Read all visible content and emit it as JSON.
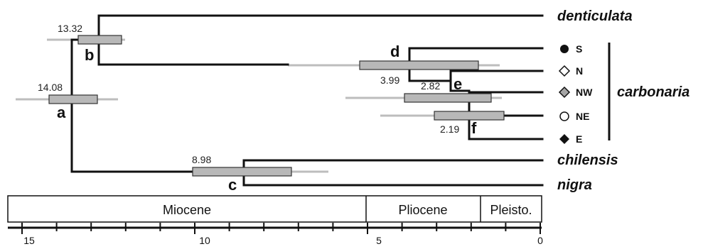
{
  "taxa": {
    "denticulata": "denticulata",
    "carbonaria": "carbonaria",
    "chilensis": "chilensis",
    "nigra": "nigra"
  },
  "populations": [
    {
      "label": "S",
      "symbol": "filled-circle"
    },
    {
      "label": "N",
      "symbol": "open-diamond"
    },
    {
      "label": "NW",
      "symbol": "grey-diamond"
    },
    {
      "label": "NE",
      "symbol": "open-circle"
    },
    {
      "label": "E",
      "symbol": "filled-diamond"
    }
  ],
  "nodes": {
    "a": {
      "letter": "a",
      "age": "14.08"
    },
    "b": {
      "letter": "b",
      "age": "13.32"
    },
    "c": {
      "letter": "c",
      "age": "8.98"
    },
    "d": {
      "letter": "d",
      "age": "3.99"
    },
    "e": {
      "letter": "e",
      "age": "2.82"
    },
    "f": {
      "letter": "f",
      "age": "2.19"
    }
  },
  "epochs": [
    "Miocene",
    "Pliocene",
    "Pleisto."
  ],
  "time_axis": {
    "ticks": [
      "15",
      "10",
      "5",
      "0"
    ]
  },
  "colors": {
    "branch": "#111111",
    "hpd_box": "#b8b8b8",
    "hpd_whisker": "#bdbdbd",
    "grey_symbol": "#a6a6a6"
  }
}
